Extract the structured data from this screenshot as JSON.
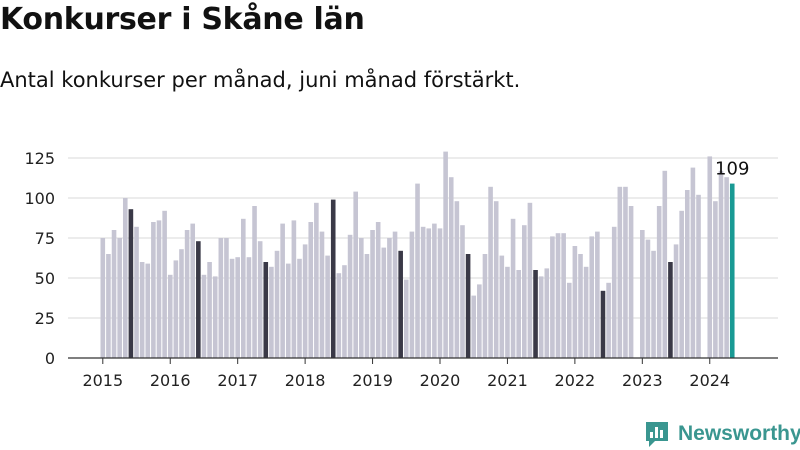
{
  "header": {
    "title": "Konkurser i Skåne län",
    "subtitle": "Antal konkurser per månad, juni månad förstärkt."
  },
  "brand": {
    "name": "Newsworthy",
    "icon": "newsworthy-logo-icon",
    "color": "#3a9690"
  },
  "colors": {
    "bar": "#c6c5d3",
    "june": "#3a3947",
    "latest": "#199a94",
    "grid": "#d9d9d9"
  },
  "chart_data": {
    "type": "bar",
    "title": "Konkurser i Skåne län",
    "subtitle": "Antal konkurser per månad, juni månad förstärkt.",
    "xlabel": "",
    "ylabel": "",
    "ylim": [
      0,
      130
    ],
    "yticks": [
      0,
      25,
      50,
      75,
      100,
      125
    ],
    "xticks": [
      "2015",
      "2016",
      "2017",
      "2018",
      "2019",
      "2020",
      "2021",
      "2022",
      "2023",
      "2024"
    ],
    "start_month": "2015-01",
    "grid": true,
    "highlight": "juni",
    "last_value_label": "109",
    "values": [
      75,
      65,
      80,
      75,
      100,
      93,
      82,
      60,
      59,
      85,
      86,
      92,
      52,
      61,
      68,
      80,
      84,
      73,
      52,
      60,
      51,
      75,
      75,
      62,
      63,
      87,
      63,
      95,
      73,
      60,
      57,
      67,
      84,
      59,
      86,
      62,
      71,
      85,
      97,
      79,
      64,
      99,
      53,
      58,
      77,
      104,
      75,
      65,
      80,
      85,
      69,
      75,
      79,
      67,
      49,
      79,
      109,
      82,
      81,
      84,
      81,
      129,
      113,
      98,
      83,
      65,
      39,
      46,
      65,
      107,
      98,
      64,
      57,
      87,
      55,
      83,
      97,
      55,
      51,
      56,
      76,
      78,
      78,
      47,
      70,
      65,
      57,
      76,
      79,
      42,
      47,
      82,
      107,
      107,
      95,
      null,
      80,
      74,
      67,
      95,
      117,
      60,
      71,
      92,
      105,
      119,
      102,
      null,
      126,
      98,
      117,
      113,
      109
    ]
  }
}
